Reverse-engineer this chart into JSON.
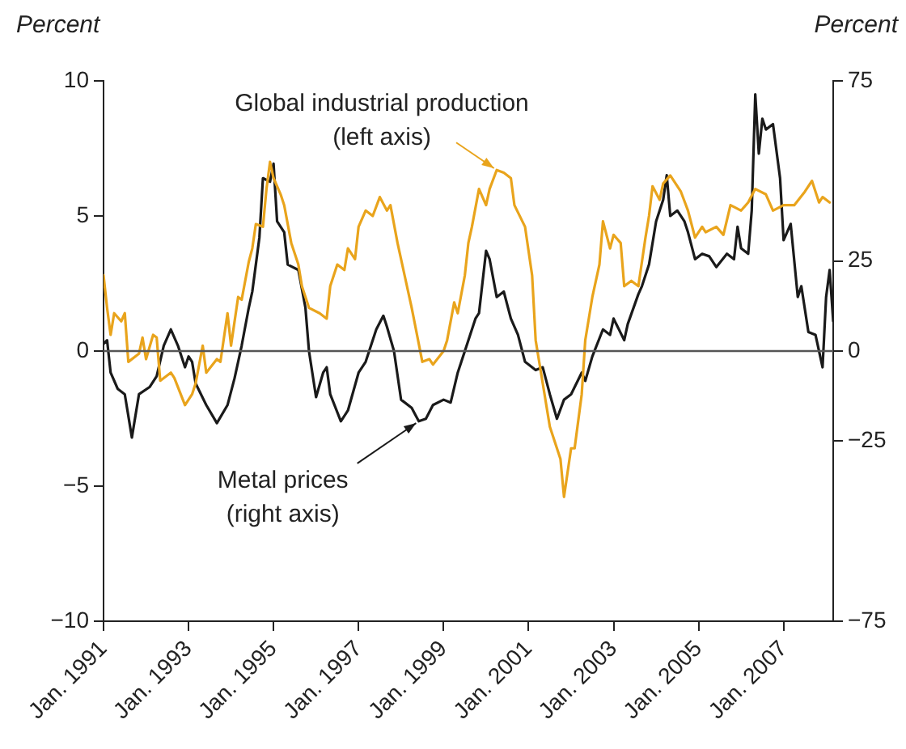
{
  "chart_data": {
    "type": "line",
    "ylabel": "Percent",
    "y2label": "Percent",
    "xlim": [
      "1991-01",
      "2008-03"
    ],
    "xticks": [
      {
        "value": "1991-01",
        "label": "Jan. 1991"
      },
      {
        "value": "1993-01",
        "label": "Jan. 1993"
      },
      {
        "value": "1995-01",
        "label": "Jan. 1995"
      },
      {
        "value": "1997-01",
        "label": "Jan. 1997"
      },
      {
        "value": "1999-01",
        "label": "Jan. 1999"
      },
      {
        "value": "2001-01",
        "label": "Jan. 2001"
      },
      {
        "value": "2003-01",
        "label": "Jan. 2003"
      },
      {
        "value": "2005-01",
        "label": "Jan. 2005"
      },
      {
        "value": "2007-01",
        "label": "Jan. 2007"
      }
    ],
    "ylim": [
      -10,
      10
    ],
    "yticks": [
      {
        "value": -10,
        "label": "−10"
      },
      {
        "value": -5,
        "label": "−5"
      },
      0,
      5,
      10
    ],
    "y2lim": [
      -75,
      75
    ],
    "y2ticks": [
      {
        "value": -75,
        "label": "−75"
      },
      {
        "value": -25,
        "label": "−25"
      },
      0,
      25,
      75
    ],
    "grid": false,
    "legend": false,
    "marker": "none",
    "line_style": "solid",
    "ref_lines": [
      {
        "axis": "y",
        "value": 0,
        "color": "#555555"
      }
    ],
    "annotations": [
      {
        "text": "Global industrial production\n(left axis)",
        "x": "2000-04",
        "y": 6.7
      },
      {
        "text": "Metal prices\n(right axis)",
        "x": "1998-06",
        "y": -2.6
      }
    ],
    "series": [
      {
        "color": "#e9a41c",
        "x": [
          "1991-01",
          "1991-02",
          "1991-03",
          "1991-04",
          "1991-06",
          "1991-07",
          "1991-08",
          "1991-11",
          "1991-12",
          "1992-01",
          "1992-03",
          "1992-04",
          "1992-05",
          "1992-08",
          "1992-09",
          "1992-12",
          "1993-02",
          "1993-03",
          "1993-05",
          "1993-06",
          "1993-09",
          "1993-10",
          "1993-12",
          "1994-01",
          "1994-03",
          "1994-04",
          "1994-06",
          "1994-07",
          "1994-08",
          "1994-10",
          "1994-11",
          "1994-12",
          "1995-01",
          "1995-03",
          "1995-04",
          "1995-06",
          "1995-08",
          "1995-09",
          "1995-11",
          "1996-02",
          "1996-04",
          "1996-05",
          "1996-07",
          "1996-09",
          "1996-10",
          "1996-12",
          "1997-01",
          "1997-03",
          "1997-05",
          "1997-07",
          "1997-09",
          "1997-10",
          "1997-12",
          "1998-02",
          "1998-04",
          "1998-07",
          "1998-09",
          "1998-10",
          "1999-01",
          "1999-02",
          "1999-04",
          "1999-05",
          "1999-07",
          "1999-08",
          "1999-09",
          "1999-11",
          "2000-01",
          "2000-02",
          "2000-04",
          "2000-06",
          "2000-08",
          "2000-09",
          "2000-12",
          "2001-02",
          "2001-03",
          "2001-05",
          "2001-07",
          "2001-10",
          "2001-11",
          "2002-01",
          "2002-02",
          "2002-04",
          "2002-05",
          "2002-07",
          "2002-09",
          "2002-10",
          "2002-12",
          "2003-01",
          "2003-03",
          "2003-04",
          "2003-06",
          "2003-08",
          "2003-10",
          "2003-11",
          "2003-12",
          "2004-02",
          "2004-03",
          "2004-05",
          "2004-08",
          "2004-10",
          "2004-12",
          "2005-02",
          "2005-03",
          "2005-06",
          "2005-08",
          "2005-10",
          "2006-01",
          "2006-03",
          "2006-05",
          "2006-08",
          "2006-10",
          "2007-01",
          "2007-04",
          "2007-07",
          "2007-09",
          "2007-11",
          "2007-12",
          "2008-02"
        ],
        "values": [
          2.8,
          1.6,
          0.6,
          1.4,
          1.1,
          1.4,
          -0.4,
          -0.1,
          0.5,
          -0.3,
          0.6,
          0.5,
          -1.1,
          -0.8,
          -1.0,
          -2.0,
          -1.6,
          -1.2,
          0.2,
          -0.8,
          -0.3,
          -0.4,
          1.4,
          0.2,
          2.0,
          1.9,
          3.3,
          3.8,
          4.7,
          4.6,
          6.0,
          7.0,
          6.4,
          5.8,
          5.4,
          4.0,
          3.2,
          2.4,
          1.6,
          1.4,
          1.2,
          2.4,
          3.2,
          3.0,
          3.8,
          3.4,
          4.6,
          5.2,
          5.0,
          5.7,
          5.2,
          5.4,
          4.0,
          2.8,
          1.6,
          -0.4,
          -0.3,
          -0.5,
          0,
          0.4,
          1.8,
          1.4,
          2.8,
          4.0,
          4.6,
          6.0,
          5.4,
          6.0,
          6.7,
          6.6,
          6.4,
          5.4,
          4.6,
          2.8,
          0.4,
          -1.2,
          -2.8,
          -4.0,
          -5.4,
          -3.6,
          -3.6,
          -1.6,
          0.4,
          2.0,
          3.2,
          4.8,
          3.8,
          4.3,
          4.0,
          2.4,
          2.6,
          2.4,
          4.2,
          5.0,
          6.1,
          5.6,
          6.2,
          6.5,
          5.9,
          5.2,
          4.2,
          4.6,
          4.4,
          4.6,
          4.3,
          5.4,
          5.2,
          5.5,
          6.0,
          5.8,
          5.2,
          5.4,
          5.4,
          5.9,
          6.3,
          5.5,
          5.7,
          5.5
        ]
      },
      {
        "color": "#1a1a1a",
        "axis": "y2",
        "x": [
          "1991-01",
          "1991-02",
          "1991-03",
          "1991-05",
          "1991-07",
          "1991-09",
          "1991-11",
          "1992-02",
          "1992-04",
          "1992-06",
          "1992-08",
          "1992-10",
          "1992-12",
          "1993-01",
          "1993-02",
          "1993-03",
          "1993-06",
          "1993-09",
          "1993-12",
          "1994-02",
          "1994-04",
          "1994-06",
          "1994-07",
          "1994-09",
          "1994-10",
          "1994-12",
          "1995-01",
          "1995-02",
          "1995-04",
          "1995-05",
          "1995-08",
          "1995-10",
          "1995-11",
          "1996-01",
          "1996-03",
          "1996-04",
          "1996-05",
          "1996-08",
          "1996-10",
          "1997-01",
          "1997-03",
          "1997-06",
          "1997-08",
          "1997-09",
          "1997-11",
          "1998-01",
          "1998-04",
          "1998-06",
          "1998-08",
          "1998-10",
          "1999-01",
          "1999-03",
          "1999-05",
          "1999-08",
          "1999-10",
          "1999-11",
          "2000-01",
          "2000-02",
          "2000-04",
          "2000-06",
          "2000-08",
          "2000-10",
          "2000-12",
          "2001-03",
          "2001-05",
          "2001-07",
          "2001-09",
          "2001-11",
          "2002-01",
          "2002-04",
          "2002-05",
          "2002-07",
          "2002-10",
          "2002-12",
          "2003-01",
          "2003-04",
          "2003-05",
          "2003-08",
          "2003-09",
          "2003-11",
          "2004-01",
          "2004-03",
          "2004-04",
          "2004-05",
          "2004-07",
          "2004-09",
          "2004-10",
          "2004-12",
          "2005-02",
          "2005-04",
          "2005-06",
          "2005-09",
          "2005-11",
          "2005-12",
          "2006-01",
          "2006-03",
          "2006-04",
          "2006-05",
          "2006-06",
          "2006-07",
          "2006-08",
          "2006-10",
          "2006-12",
          "2007-01",
          "2007-03",
          "2007-05",
          "2007-06",
          "2007-08",
          "2007-10",
          "2007-12",
          "2008-01",
          "2008-02",
          "2008-03"
        ],
        "values": [
          2,
          3,
          -6,
          -10.5,
          -12,
          -24,
          -12,
          -10,
          -7,
          1.5,
          6,
          1.5,
          -4.5,
          -1.5,
          -3,
          -9,
          -15,
          -20,
          -15,
          -7.5,
          1.5,
          12,
          16.5,
          31.5,
          48,
          47,
          52,
          36,
          33,
          24,
          22.5,
          12,
          0,
          -12.8,
          -6,
          -4.5,
          -12,
          -19.5,
          -16.5,
          -6,
          -3,
          6,
          9.8,
          6.8,
          0,
          -13.5,
          -15.8,
          -19.5,
          -18.8,
          -15,
          -13.5,
          -14.3,
          -6,
          3,
          9,
          10.5,
          27.8,
          25.5,
          15,
          16.5,
          9,
          4.5,
          -3,
          -5.3,
          -4.5,
          -12,
          -18.8,
          -13.5,
          -12,
          -6,
          -8.3,
          -1.5,
          6,
          4.5,
          9,
          3,
          7.5,
          15.8,
          18,
          24,
          36,
          42,
          48.8,
          37.5,
          39,
          36,
          33,
          25.5,
          27,
          26.3,
          23.3,
          27,
          25.5,
          34.5,
          28.5,
          27,
          39,
          71.3,
          54.8,
          64.5,
          61.5,
          63,
          48,
          30.8,
          35.3,
          15,
          18,
          5.3,
          4.5,
          -4.5,
          15,
          22.5,
          8.3
        ]
      }
    ]
  }
}
